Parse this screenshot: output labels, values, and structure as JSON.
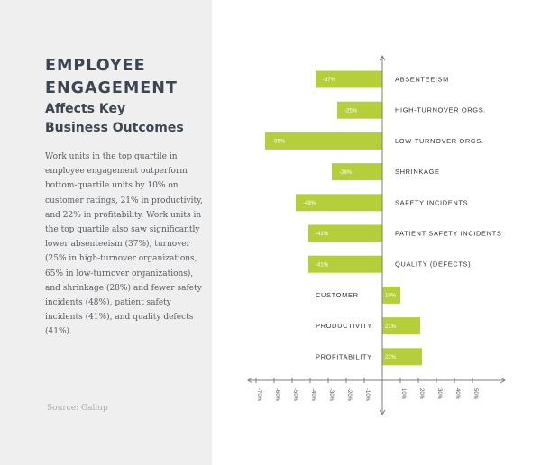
{
  "sidebar": {
    "title_line1": "EMPLOYEE",
    "title_line2": "ENGAGEMENT",
    "subtitle_line1": "Affects Key",
    "subtitle_line2": "Business Outcomes",
    "body": "Work units in the top quartile in employee engagement outperform bottom-quartile units by 10% on customer ratings, 21% in productivity, and 22% in profitability. Work units in the top quartile also saw significantly lower absenteeism (37%), turnover (25% in high-turnover organizations, 65% in low-turnover organizations), and shrinkage (28%) and fewer safety incidents (48%), patient safety incidents (41%), and quality defects (41%).",
    "source": "Source: Gallup"
  },
  "colors": {
    "bar": "#b5cf3a",
    "axis": "#7a7f85",
    "panel": "#efefef"
  },
  "chart_data": {
    "type": "bar",
    "orientation": "horizontal",
    "categories": [
      "ABSENTEEISM",
      "HIGH-TURNOVER ORGS.",
      "LOW-TURNOVER ORGS.",
      "SHRINKAGE",
      "SAFETY INCIDENTS",
      "PATIENT SAFETY INCIDENTS",
      "QUALITY (DEFECTS)",
      "CUSTOMER",
      "PRODUCTIVITY",
      "PROFITABILITY"
    ],
    "values": [
      -37,
      -25,
      -65,
      -28,
      -48,
      -41,
      -41,
      10,
      21,
      22
    ],
    "value_labels": [
      "-37%",
      "-25%",
      "-65%",
      "-28%",
      "-48%",
      "-41%",
      "-41%",
      "10%",
      "21%",
      "22%"
    ],
    "xlim": [
      -70,
      50
    ],
    "x_ticks": [
      -70,
      -60,
      -50,
      -40,
      -30,
      -20,
      -10,
      10,
      20,
      30,
      40,
      50
    ],
    "x_tick_labels": [
      "-70%",
      "-60%",
      "-50%",
      "-40%",
      "-30%",
      "-20%",
      "-10%",
      "10%",
      "20%",
      "30%",
      "40%",
      "50%"
    ],
    "grid": false,
    "legend": "none"
  }
}
